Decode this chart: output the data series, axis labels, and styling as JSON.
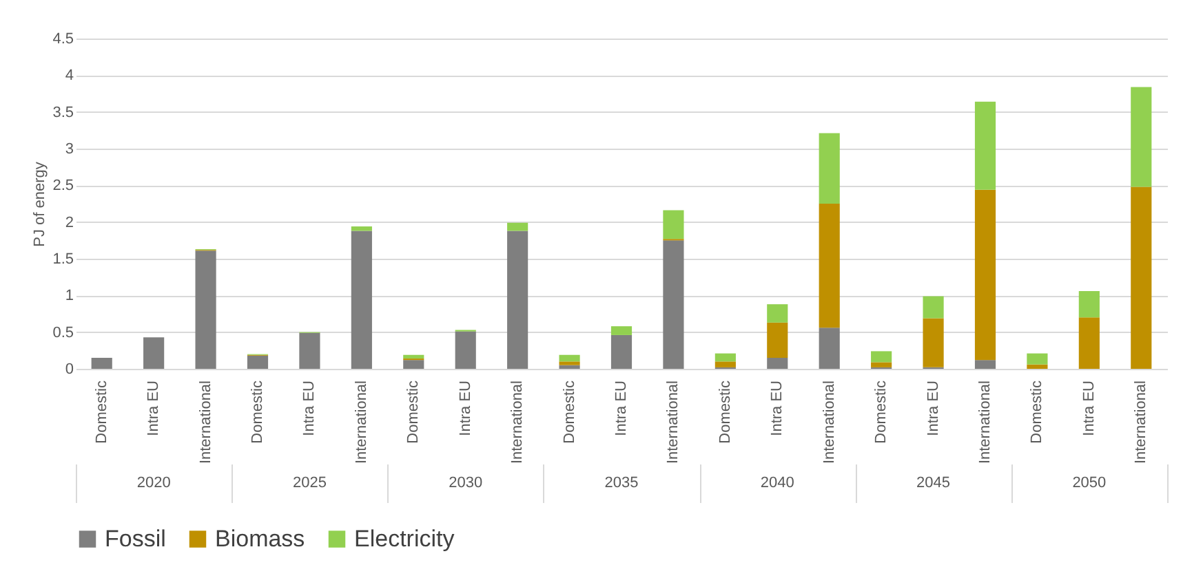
{
  "chart_data": {
    "type": "bar",
    "stacked": true,
    "ylabel": "PJ of energy",
    "categories": [
      "Domestic",
      "Intra EU",
      "International",
      "Domestic",
      "Intra EU",
      "International",
      "Domestic",
      "Intra EU",
      "International",
      "Domestic",
      "Intra EU",
      "International",
      "Domestic",
      "Intra EU",
      "International",
      "Domestic",
      "Intra EU",
      "International",
      "Domestic",
      "Intra EU",
      "International"
    ],
    "annotations": [
      "2020",
      "2025",
      "2030",
      "2035",
      "2040",
      "2045",
      "2050"
    ],
    "series": [
      {
        "name": "Fossil",
        "color": "#7f7f7f",
        "values": [
          0.15,
          0.43,
          1.61,
          0.18,
          0.49,
          1.88,
          0.12,
          0.51,
          1.88,
          0.05,
          0.46,
          1.75,
          0.02,
          0.15,
          0.56,
          0.02,
          0.02,
          0.12,
          0,
          0,
          0
        ]
      },
      {
        "name": "Biomass",
        "color": "#bf9000",
        "values": [
          0,
          0,
          0.01,
          0.01,
          0,
          0,
          0.02,
          0,
          0,
          0.05,
          0,
          0.02,
          0.08,
          0.48,
          1.69,
          0.07,
          0.67,
          2.32,
          0.06,
          0.7,
          2.48
        ]
      },
      {
        "name": "Electricity",
        "color": "#92d050",
        "values": [
          0,
          0,
          0.01,
          0.01,
          0.01,
          0.06,
          0.05,
          0.02,
          0.11,
          0.09,
          0.12,
          0.39,
          0.11,
          0.25,
          0.96,
          0.15,
          0.3,
          1.2,
          0.15,
          0.36,
          1.36
        ]
      }
    ],
    "ylim": [
      0,
      4.5
    ],
    "yticks": [
      0,
      0.5,
      1,
      1.5,
      2,
      2.5,
      3,
      3.5,
      4,
      4.5
    ],
    "grid": "y",
    "legend": "bottom"
  }
}
